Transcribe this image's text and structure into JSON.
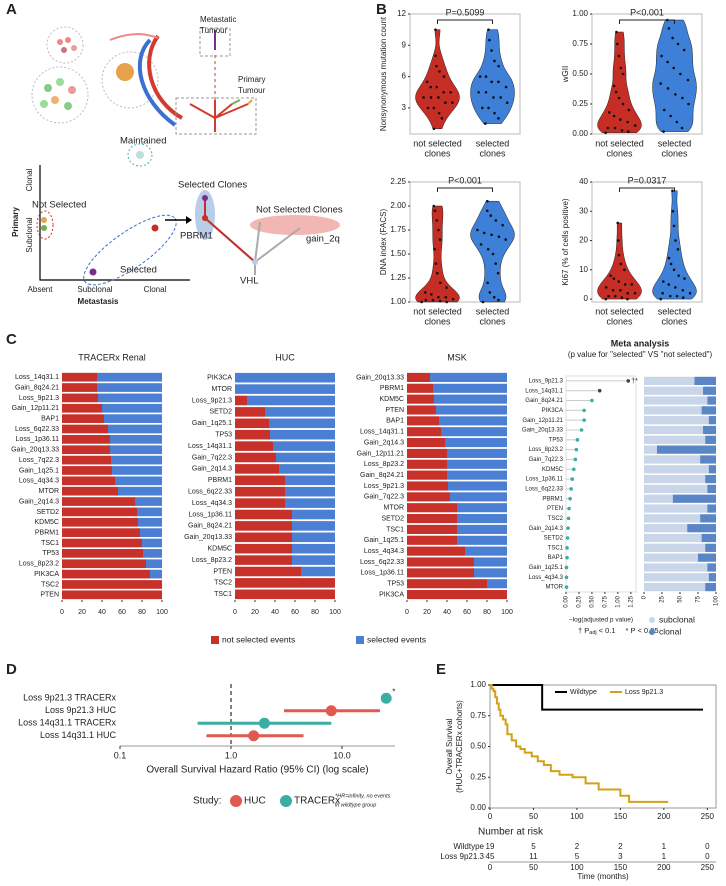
{
  "panel_labels": [
    "A",
    "B",
    "C",
    "D",
    "E"
  ],
  "diagram": {
    "labels": [
      "Metastatic",
      "Tumour",
      "Primary",
      "Tumour",
      "Clonal",
      "Subclonal",
      "Primary",
      "Absent",
      "Subclonal",
      "Clonal",
      "Metastasis",
      "Maintained",
      "Not Selected",
      "Selected",
      "Selected Clones",
      "Not Selected Clones",
      "PBRM1",
      "VHL",
      "gain_2q"
    ]
  },
  "chart_data": [
    {
      "type": "violin",
      "ylabel": "Nonsynonymous mutation count",
      "annotation": "P=0.5099",
      "categories": [
        [
          "not selected",
          "clones"
        ],
        [
          "selected",
          "clones"
        ]
      ],
      "ylim": [
        0.5,
        12
      ],
      "yticks": [
        3,
        6,
        9,
        12
      ],
      "series": [
        {
          "color": "#c62d25",
          "values": [
            1,
            2,
            2.5,
            3,
            3,
            3.5,
            3.5,
            4,
            4,
            4,
            4.5,
            4.5,
            5,
            5,
            5.5,
            6,
            6.5,
            7,
            8,
            10.5
          ]
        },
        {
          "color": "#3e7fd8",
          "values": [
            1.5,
            2,
            2.5,
            3,
            3,
            3.5,
            4,
            4,
            4.5,
            4.5,
            5,
            5.5,
            5.5,
            6,
            6,
            7,
            7.5,
            8.5,
            9.5,
            10.5
          ]
        }
      ]
    },
    {
      "type": "violin",
      "ylabel": "wGII",
      "annotation": "P<0.001",
      "categories": [
        [
          "not selected",
          "clones"
        ],
        [
          "selected",
          "clones"
        ]
      ],
      "ylim": [
        0,
        1
      ],
      "yticks": [
        {
          "value": 0,
          "label": "0.00"
        },
        {
          "value": 0.25,
          "label": "0.25"
        },
        {
          "value": 0.5,
          "label": "0.50"
        },
        {
          "value": 0.75,
          "label": "0.75"
        },
        {
          "value": 1,
          "label": "1.00"
        }
      ],
      "series": [
        {
          "color": "#c62d25",
          "values": [
            0.01,
            0.02,
            0.03,
            0.05,
            0.05,
            0.07,
            0.1,
            0.12,
            0.15,
            0.18,
            0.2,
            0.25,
            0.3,
            0.35,
            0.4,
            0.5,
            0.55,
            0.65,
            0.75,
            0.85
          ]
        },
        {
          "color": "#3e7fd8",
          "values": [
            0.02,
            0.05,
            0.1,
            0.15,
            0.2,
            0.25,
            0.3,
            0.33,
            0.38,
            0.42,
            0.45,
            0.5,
            0.55,
            0.6,
            0.65,
            0.7,
            0.75,
            0.8,
            0.88,
            0.95
          ]
        }
      ]
    },
    {
      "type": "violin",
      "ylabel": "DNA index (FACS)",
      "annotation": "P<0.001",
      "categories": [
        [
          "not selected",
          "clones"
        ],
        [
          "selected",
          "clones"
        ]
      ],
      "ylim": [
        1,
        2.25
      ],
      "yticks": [
        {
          "value": 1,
          "label": "1.00"
        },
        {
          "value": 1.25,
          "label": "1.25"
        },
        {
          "value": 1.5,
          "label": "1.50"
        },
        {
          "value": 1.75,
          "label": "1.75"
        },
        {
          "value": 2,
          "label": "2.00"
        },
        {
          "value": 2.25,
          "label": "2.25"
        }
      ],
      "series": [
        {
          "color": "#c62d25",
          "values": [
            1,
            1,
            1.01,
            1.02,
            1.02,
            1.03,
            1.05,
            1.05,
            1.08,
            1.1,
            1.15,
            1.2,
            1.3,
            1.4,
            1.55,
            1.65,
            1.75,
            1.85,
            1.95,
            2
          ]
        },
        {
          "color": "#3e7fd8",
          "values": [
            1,
            1.02,
            1.05,
            1.1,
            1.2,
            1.3,
            1.4,
            1.5,
            1.55,
            1.6,
            1.65,
            1.68,
            1.7,
            1.72,
            1.75,
            1.8,
            1.85,
            1.9,
            1.95,
            2.05
          ]
        }
      ]
    },
    {
      "type": "violin",
      "ylabel": "Ki67 (% of cells positive)",
      "annotation": "P=0.0317",
      "categories": [
        [
          "not selected",
          "clones"
        ],
        [
          "selected",
          "clones"
        ]
      ],
      "ylim": [
        -1,
        40
      ],
      "yticks": [
        0,
        10,
        20,
        30,
        40
      ],
      "series": [
        {
          "color": "#c62d25",
          "values": [
            0,
            0,
            0.5,
            1,
            1,
            2,
            2,
            3,
            3,
            4,
            5,
            5,
            6,
            7,
            8,
            10,
            12,
            15,
            20,
            26
          ]
        },
        {
          "color": "#3e7fd8",
          "values": [
            0,
            0.5,
            1,
            1,
            2,
            2,
            3,
            4,
            5,
            6,
            7,
            8,
            10,
            12,
            14,
            17,
            20,
            25,
            30,
            37
          ]
        }
      ]
    },
    {
      "type": "stacked_barh",
      "title": "TRACERx Renal",
      "xlim": [
        0,
        100
      ],
      "xticks": [
        0,
        20,
        40,
        60,
        80,
        100
      ],
      "categories": [
        "Loss_14q31.1",
        "Gain_8q24.21",
        "Loss_9p21.3",
        "Gain_12p11.21",
        "BAP1",
        "Loss_6q22.33",
        "Loss_1p36.11",
        "Gain_20q13.33",
        "Loss_7q22.3",
        "Gain_1q25.1",
        "Loss_4q34.3",
        "MTOR",
        "Gain_2q14.3",
        "SETD2",
        "KDM5C",
        "PBRM1",
        "TSC1",
        "TP53",
        "Loss_8p23.2",
        "PIK3CA",
        "TSC2",
        "PTEN"
      ],
      "series": [
        {
          "name": "not selected events",
          "color": "#c8302a",
          "values": [
            35,
            35,
            36,
            40,
            42,
            46,
            48,
            48,
            49,
            50,
            53,
            56,
            73,
            75,
            76,
            78,
            80,
            81,
            84,
            88,
            100,
            100
          ]
        },
        {
          "name": "selected events",
          "color": "#4a7fd4",
          "values": [
            65,
            65,
            64,
            60,
            58,
            54,
            52,
            52,
            51,
            50,
            47,
            44,
            27,
            25,
            24,
            22,
            20,
            19,
            16,
            12,
            0,
            0
          ]
        }
      ]
    },
    {
      "type": "stacked_barh",
      "title": "HUC",
      "xlim": [
        0,
        100
      ],
      "xticks": [
        0,
        20,
        40,
        60,
        80,
        100
      ],
      "categories": [
        "PIK3CA",
        "MTOR",
        "Loss_9p21.3",
        "SETD2",
        "Gain_1q25.1",
        "TP53",
        "Loss_14q31.1",
        "Gain_7q22.3",
        "Gain_2q14.3",
        "PBRM1",
        "Loss_6q22.33",
        "Loss_4q34.3",
        "Loss_1p36.11",
        "Gain_8q24.21",
        "Gain_20q13.33",
        "KDM5C",
        "Loss_8p23.2",
        "PTEN",
        "TSC2",
        "TSC1"
      ],
      "series": [
        {
          "color": "#c8302a",
          "values": [
            0,
            0,
            12,
            30,
            34,
            35,
            38,
            41,
            44,
            50,
            50,
            50,
            57,
            57,
            57,
            57,
            57,
            66,
            100,
            100
          ]
        },
        {
          "color": "#4a7fd4",
          "values": [
            100,
            100,
            88,
            70,
            66,
            65,
            62,
            59,
            56,
            50,
            50,
            50,
            43,
            43,
            43,
            43,
            43,
            34,
            0,
            0
          ]
        }
      ]
    },
    {
      "type": "stacked_barh",
      "title": "MSK",
      "xlim": [
        0,
        100
      ],
      "xticks": [
        0,
        20,
        40,
        60,
        80,
        100
      ],
      "categories": [
        "Gain_20q13.33",
        "PBRM1",
        "KDM5C",
        "PTEN",
        "BAP1",
        "Loss_14q31.1",
        "Gain_2q14.3",
        "Gain_12p11.21",
        "Loss_8p23.2",
        "Gain_8q24.21",
        "Loss_9p21.3",
        "Gain_7q22.3",
        "MTOR",
        "SETD2",
        "TSC1",
        "Gain_1q25.1",
        "Loss_4q34.3",
        "Loss_6q22.33",
        "Loss_1p36.11",
        "TP53",
        "PIK3CA"
      ],
      "series": [
        {
          "color": "#c8302a",
          "values": [
            23,
            26,
            27,
            29,
            32,
            34,
            38,
            40,
            40,
            40,
            41,
            43,
            50,
            50,
            50,
            50,
            58,
            67,
            67,
            80,
            100
          ]
        },
        {
          "color": "#4a7fd4",
          "values": [
            77,
            74,
            73,
            71,
            68,
            66,
            62,
            60,
            60,
            60,
            59,
            57,
            50,
            50,
            50,
            50,
            42,
            33,
            33,
            20,
            0
          ]
        }
      ]
    },
    {
      "type": "dot",
      "title": "Meta analysis",
      "subtitle": "(p value for \"selected\" VS \"not selected\")",
      "xlabel": "−log(adjusted p  value)",
      "xlim": [
        0,
        1.35
      ],
      "xticks": [
        {
          "value": 0,
          "label": "0.00"
        },
        {
          "value": 0.25,
          "label": "0.25"
        },
        {
          "value": 0.5,
          "label": "0.50"
        },
        {
          "value": 0.75,
          "label": "0.75"
        },
        {
          "value": 1,
          "label": "1.00"
        },
        {
          "value": 1.25,
          "label": "1.25"
        }
      ],
      "categories": [
        "Loss_9p21.3",
        "Loss_14q31.1",
        "Gain_8q24.21",
        "PIK3CA",
        "Gain_12p11.21",
        "Gain_20q13.33",
        "TP53",
        "Loss_8p23.2",
        "Gain_7q22.3",
        "KDM5C",
        "Loss_1p36.11",
        "Loss_6q22.33",
        "PBRM1",
        "PTEN",
        "TSC2",
        "Gain_2q14.3",
        "SETD2",
        "TSC1",
        "BAP1",
        "Gain_1q25.1",
        "Loss_4q34.3",
        "MTOR"
      ],
      "values": [
        1.2,
        0.65,
        0.5,
        0.35,
        0.35,
        0.3,
        0.22,
        0.2,
        0.18,
        0.15,
        0.12,
        0.1,
        0.08,
        0.06,
        0.05,
        0.04,
        0.03,
        0.02,
        0.02,
        0.01,
        0.01,
        0.01
      ],
      "point_colors": [
        "#444444",
        "#444444",
        "#3aaea3",
        "#3aaea3",
        "#3aaea3",
        "#3aaea3",
        "#3aaea3",
        "#3aaea3",
        "#3aaea3",
        "#3aaea3",
        "#3aaea3",
        "#3aaea3",
        "#3aaea3",
        "#3aaea3",
        "#3aaea3",
        "#3aaea3",
        "#3aaea3",
        "#3aaea3",
        "#3aaea3",
        "#3aaea3",
        "#3aaea3",
        "#3aaea3"
      ],
      "marker": "†*",
      "notes": [
        "† P",
        "adj",
        "< 0.1",
        "* P < 0.05"
      ]
    },
    {
      "type": "stacked_barh",
      "xlim": [
        0,
        100
      ],
      "xticks": [
        0,
        25,
        50,
        75,
        100
      ],
      "rotated_ticks": true,
      "series": [
        {
          "name": "subclonal",
          "color": "#c9d6ea",
          "values": [
            70,
            82,
            88,
            80,
            90,
            82,
            85,
            18,
            78,
            90,
            85,
            88,
            40,
            88,
            78,
            60,
            80,
            85,
            75,
            88,
            90,
            85
          ]
        },
        {
          "name": "clonal",
          "color": "#5b86c6",
          "values": [
            30,
            18,
            12,
            20,
            10,
            18,
            15,
            82,
            22,
            10,
            15,
            12,
            60,
            12,
            22,
            40,
            20,
            15,
            25,
            12,
            10,
            15
          ]
        }
      ]
    },
    {
      "type": "forest",
      "xlabel": "Overall Survival Hazard Ratio (95% CI) (log scale)",
      "log_x": true,
      "xlim": [
        0.1,
        30
      ],
      "xticks": [
        0.1,
        {
          "value": 1,
          "label": "1.0"
        },
        {
          "value": 10,
          "label": "10.0"
        }
      ],
      "reference": 1,
      "categories": [
        "Loss 9p21.3 TRACERx",
        "Loss 9p21.3 HUC",
        "Loss 14q31.1 TRACERx",
        "Loss 14q31.1 HUC"
      ],
      "values": [
        25,
        8,
        2,
        1.6
      ],
      "ci_low": [
        null,
        3,
        0.5,
        0.6
      ],
      "ci_high": [
        null,
        22,
        8,
        4.5
      ],
      "colors": [
        "#3aaea3",
        "#e05a50",
        "#3aaea3",
        "#e05a50"
      ],
      "marker": "*",
      "legend_title": "Study:",
      "legend": [
        {
          "name": "HUC",
          "color": "#e05a50"
        },
        {
          "name": "TRACERx",
          "color": "#3aaea3"
        }
      ],
      "note": [
        "*HR=infinity, no events",
        "in wildtype group"
      ]
    },
    {
      "type": "km",
      "ylabel": [
        "Overall Survival",
        "(HUC+TRACERx cohorts)"
      ],
      "xlabel": "Time (months)",
      "xlim": [
        0,
        260
      ],
      "ylim": [
        0,
        1
      ],
      "xticks": [
        0,
        50,
        100,
        150,
        200,
        250
      ],
      "yticks": [
        {
          "value": 0,
          "label": "0.00"
        },
        {
          "value": 0.25,
          "label": "0.25"
        },
        {
          "value": 0.5,
          "label": "0.50"
        },
        {
          "value": 0.75,
          "label": "0.75"
        },
        {
          "value": 1,
          "label": "1.00"
        }
      ],
      "series": [
        {
          "name": "Wildtype",
          "color": "#000000",
          "x": [
            0,
            60,
            245
          ],
          "values": [
            1,
            0.8,
            0.8
          ]
        },
        {
          "name": "Loss 9p21.3",
          "color": "#d4a017",
          "x": [
            0,
            2,
            4,
            6,
            8,
            10,
            12,
            15,
            18,
            20,
            25,
            30,
            35,
            40,
            48,
            55,
            62,
            70,
            80,
            95,
            110,
            125,
            150,
            160,
            205
          ],
          "values": [
            1,
            0.97,
            0.95,
            0.9,
            0.85,
            0.8,
            0.75,
            0.72,
            0.68,
            0.6,
            0.55,
            0.5,
            0.48,
            0.45,
            0.42,
            0.38,
            0.35,
            0.3,
            0.27,
            0.25,
            0.2,
            0.15,
            0.1,
            0.05,
            0.05
          ]
        }
      ],
      "risk_title": "Number at risk",
      "risk": [
        [
          19,
          5,
          2,
          2,
          1,
          0
        ],
        [
          45,
          11,
          5,
          3,
          1,
          0
        ]
      ]
    }
  ]
}
